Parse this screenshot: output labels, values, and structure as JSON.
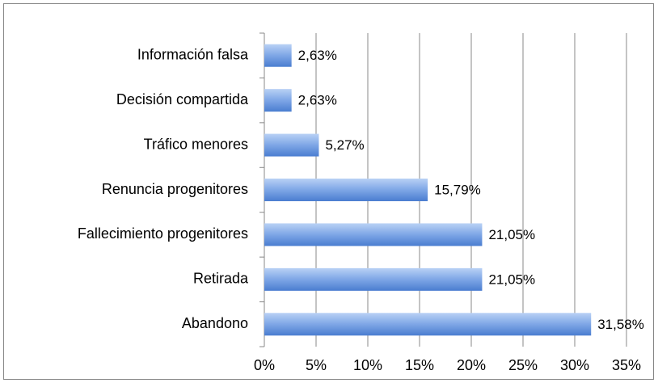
{
  "chart_data": {
    "type": "bar",
    "orientation": "horizontal",
    "categories": [
      "Información falsa",
      "Decisión compartida",
      "Tráfico menores",
      "Renuncia progenitores",
      "Fallecimiento progenitores",
      "Retirada",
      "Abandono"
    ],
    "values": [
      2.63,
      2.63,
      5.27,
      15.79,
      21.05,
      21.05,
      31.58
    ],
    "value_labels": [
      "2,63%",
      "2,63%",
      "5,27%",
      "15,79%",
      "21,05%",
      "21,05%",
      "31,58%"
    ],
    "color": "#4f81d4",
    "xlim": [
      0,
      35
    ],
    "xticks": [
      {
        "value": 0,
        "label": "0%"
      },
      {
        "value": 5,
        "label": "5%"
      },
      {
        "value": 10,
        "label": "10%"
      },
      {
        "value": 15,
        "label": "15%"
      },
      {
        "value": 20,
        "label": "20%"
      },
      {
        "value": 25,
        "label": "25%"
      },
      {
        "value": 30,
        "label": "30%"
      },
      {
        "value": 35,
        "label": "35%"
      }
    ],
    "grid": true
  }
}
